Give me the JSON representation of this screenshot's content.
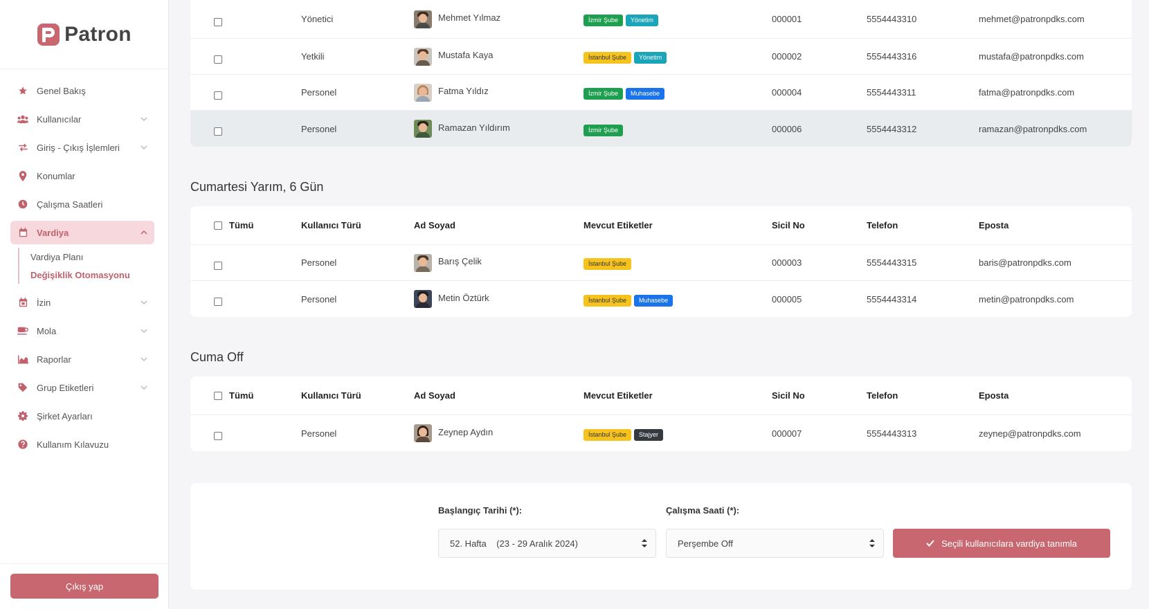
{
  "app": {
    "name": "Patron"
  },
  "sidebar": {
    "items": [
      {
        "label": "Genel Bakış",
        "icon": "star-icon"
      },
      {
        "label": "Kullanıcılar",
        "icon": "users-icon"
      },
      {
        "label": "Giriş - Çıkış İşlemleri",
        "icon": "arrows-exchange-icon"
      },
      {
        "label": "Konumlar",
        "icon": "map-pin-icon"
      },
      {
        "label": "Çalışma Saatleri",
        "icon": "clock-icon"
      },
      {
        "label": "Vardiya",
        "icon": "calendar-icon"
      },
      {
        "label": "İzin",
        "icon": "calendar-icon"
      },
      {
        "label": "Mola",
        "icon": "coffee-icon"
      },
      {
        "label": "Raporlar",
        "icon": "area-chart-icon"
      },
      {
        "label": "Grup Etiketleri",
        "icon": "tag-icon"
      },
      {
        "label": "Şirket Ayarları",
        "icon": "gear-icon"
      },
      {
        "label": "Kullanım Kılavuzu",
        "icon": "question-circle-icon"
      }
    ],
    "vardiya_sub": [
      "Vardiya Planı",
      "Değişiklik Otomasyonu"
    ],
    "logout_label": "Çıkış yap"
  },
  "table_header": {
    "all": "Tümü",
    "type": "Kullanıcı Türü",
    "name": "Ad Soyad",
    "tags": "Mevcut Etiketler",
    "sicil": "Sicil No",
    "phone": "Telefon",
    "email": "Eposta"
  },
  "group1": {
    "rows": [
      {
        "type": "Yönetici",
        "name": "Mehmet Yılmaz",
        "tags": [
          "İzmir Şube",
          "Yönetim"
        ],
        "sicil": "000001",
        "phone": "5554443310",
        "email": "mehmet@patronpdks.com"
      },
      {
        "type": "Yetkili",
        "name": "Mustafa Kaya",
        "tags": [
          "İstanbul Şube",
          "Yönetim"
        ],
        "sicil": "000002",
        "phone": "5554443316",
        "email": "mustafa@patronpdks.com"
      },
      {
        "type": "Personel",
        "name": "Fatma Yıldız",
        "tags": [
          "İzmir Şube",
          "Muhasebe"
        ],
        "sicil": "000004",
        "phone": "5554443311",
        "email": "fatma@patronpdks.com"
      },
      {
        "type": "Personel",
        "name": "Ramazan Yıldırım",
        "tags": [
          "İzmir Şube"
        ],
        "sicil": "000006",
        "phone": "5554443312",
        "email": "ramazan@patronpdks.com"
      }
    ]
  },
  "group2": {
    "title": "Cumartesi Yarım, 6 Gün",
    "rows": [
      {
        "type": "Personel",
        "name": "Barış Çelik",
        "tags": [
          "İstanbul Şube"
        ],
        "sicil": "000003",
        "phone": "5554443315",
        "email": "baris@patronpdks.com"
      },
      {
        "type": "Personel",
        "name": "Metin Öztürk",
        "tags": [
          "İstanbul Şube",
          "Muhasebe"
        ],
        "sicil": "000005",
        "phone": "5554443314",
        "email": "metin@patronpdks.com"
      }
    ]
  },
  "group3": {
    "title": "Cuma Off",
    "rows": [
      {
        "type": "Personel",
        "name": "Zeynep Aydın",
        "tags": [
          "İstanbul Şube",
          "Stajyer"
        ],
        "sicil": "000007",
        "phone": "5554443313",
        "email": "zeynep@patronpdks.com"
      }
    ]
  },
  "form": {
    "start_label": "Başlangıç Tarihi (*):",
    "start_value": "52. Hafta    (23 - 29 Aralık 2024)",
    "hours_label": "Çalışma Saati (*):",
    "hours_value": "Perşembe Off",
    "submit_label": "Seçili kullanıcılara vardiya tanımla"
  },
  "colors": {
    "accent": "#c8676f",
    "accent_light": "#f7d9dd"
  }
}
